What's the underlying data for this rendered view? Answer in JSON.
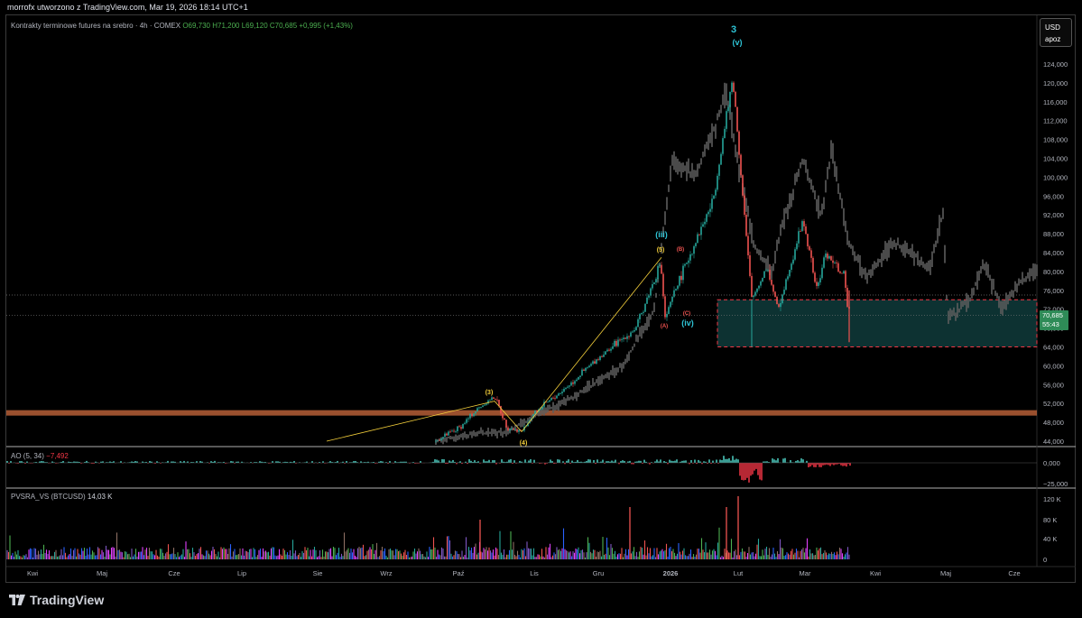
{
  "header": {
    "title": "morrofx utworzono z TradingView.com, Mar 19, 2026 18:14 UTC+1"
  },
  "legend": {
    "symbol": "Kontrakty terminowe futures na srebro · 4h · COMEX",
    "open": "O69,730",
    "high": "H71,200",
    "low": "L69,120",
    "close": "C70,685",
    "change": "+0,995 (+1,43%)"
  },
  "currency_box": {
    "currency": "USD",
    "mode": "apoz"
  },
  "price_tag": {
    "price": "70,685",
    "countdown": "55:43"
  },
  "ao": {
    "title": "AO (5, 34)",
    "value": "−7,492",
    "ticks": [
      "0,000",
      "−25,000"
    ]
  },
  "pvsra": {
    "title": "PVSRA_VS (BTCUSD)",
    "value": "14,03 K",
    "ticks": [
      "120 K",
      "80 K",
      "40 K",
      "0"
    ]
  },
  "footer": {
    "brand": "TradingView"
  },
  "colors": {
    "up": "#26a69a",
    "down": "#ef5350",
    "ghost": "#5d5d5d",
    "zone_fill": "#0f3b3b",
    "zone_border": "#f23645",
    "resistance": "#c0643a",
    "wave_line": "#f5d03b",
    "wave_blue": "#2ec4d6",
    "ao_up": "#4dd0c4",
    "ao_down": "#f23645"
  },
  "chart_data": {
    "type": "line",
    "title": "",
    "xlabel": "",
    "ylabel": "",
    "ylim": [
      44000,
      124000
    ],
    "y_ticks": [
      "124,000",
      "120,000",
      "116,000",
      "112,000",
      "108,000",
      "104,000",
      "100,000",
      "96,000",
      "92,000",
      "88,000",
      "84,000",
      "80,000",
      "76,000",
      "72,000",
      "68,000",
      "64,000",
      "60,000",
      "56,000",
      "52,000",
      "48,000",
      "44,000"
    ],
    "x_labels": [
      "Kwi",
      "Maj",
      "Cze",
      "Lip",
      "Sie",
      "Wrz",
      "Paź",
      "Lis",
      "Gru",
      "2026",
      "Lut",
      "Mar",
      "Kwi",
      "Maj",
      "Cze"
    ],
    "series": [
      {
        "x": [
          "Paź",
          "Paź",
          "Paź",
          "Paź",
          "Lis",
          "Lis",
          "Lis",
          "Gru",
          "Gru",
          "2026",
          "2026",
          "2026",
          "2026",
          "2026",
          "2026",
          "Lut",
          "Lut",
          "Lut",
          "Lut",
          "Mar",
          "Mar",
          "Mar",
          "Mar",
          "Mar"
        ],
        "values": [
          44000,
          47000,
          51000,
          53500,
          47000,
          46000,
          50000,
          55000,
          62000,
          68000,
          82000,
          70000,
          78000,
          95000,
          121000,
          74000,
          81000,
          72000,
          91000,
          76000,
          84000,
          79000,
          74000,
          70685
        ]
      }
    ],
    "annotations": {
      "wave_labels": [
        "3",
        "(v)",
        "(iii)",
        "(iv)",
        "(5)",
        "(3)",
        "(4)",
        "(A)",
        "(B)",
        "(C)"
      ],
      "demand_zone": [
        64000,
        74000
      ],
      "resistance_level": 50000,
      "dotted_levels": [
        75000,
        70685
      ]
    }
  }
}
